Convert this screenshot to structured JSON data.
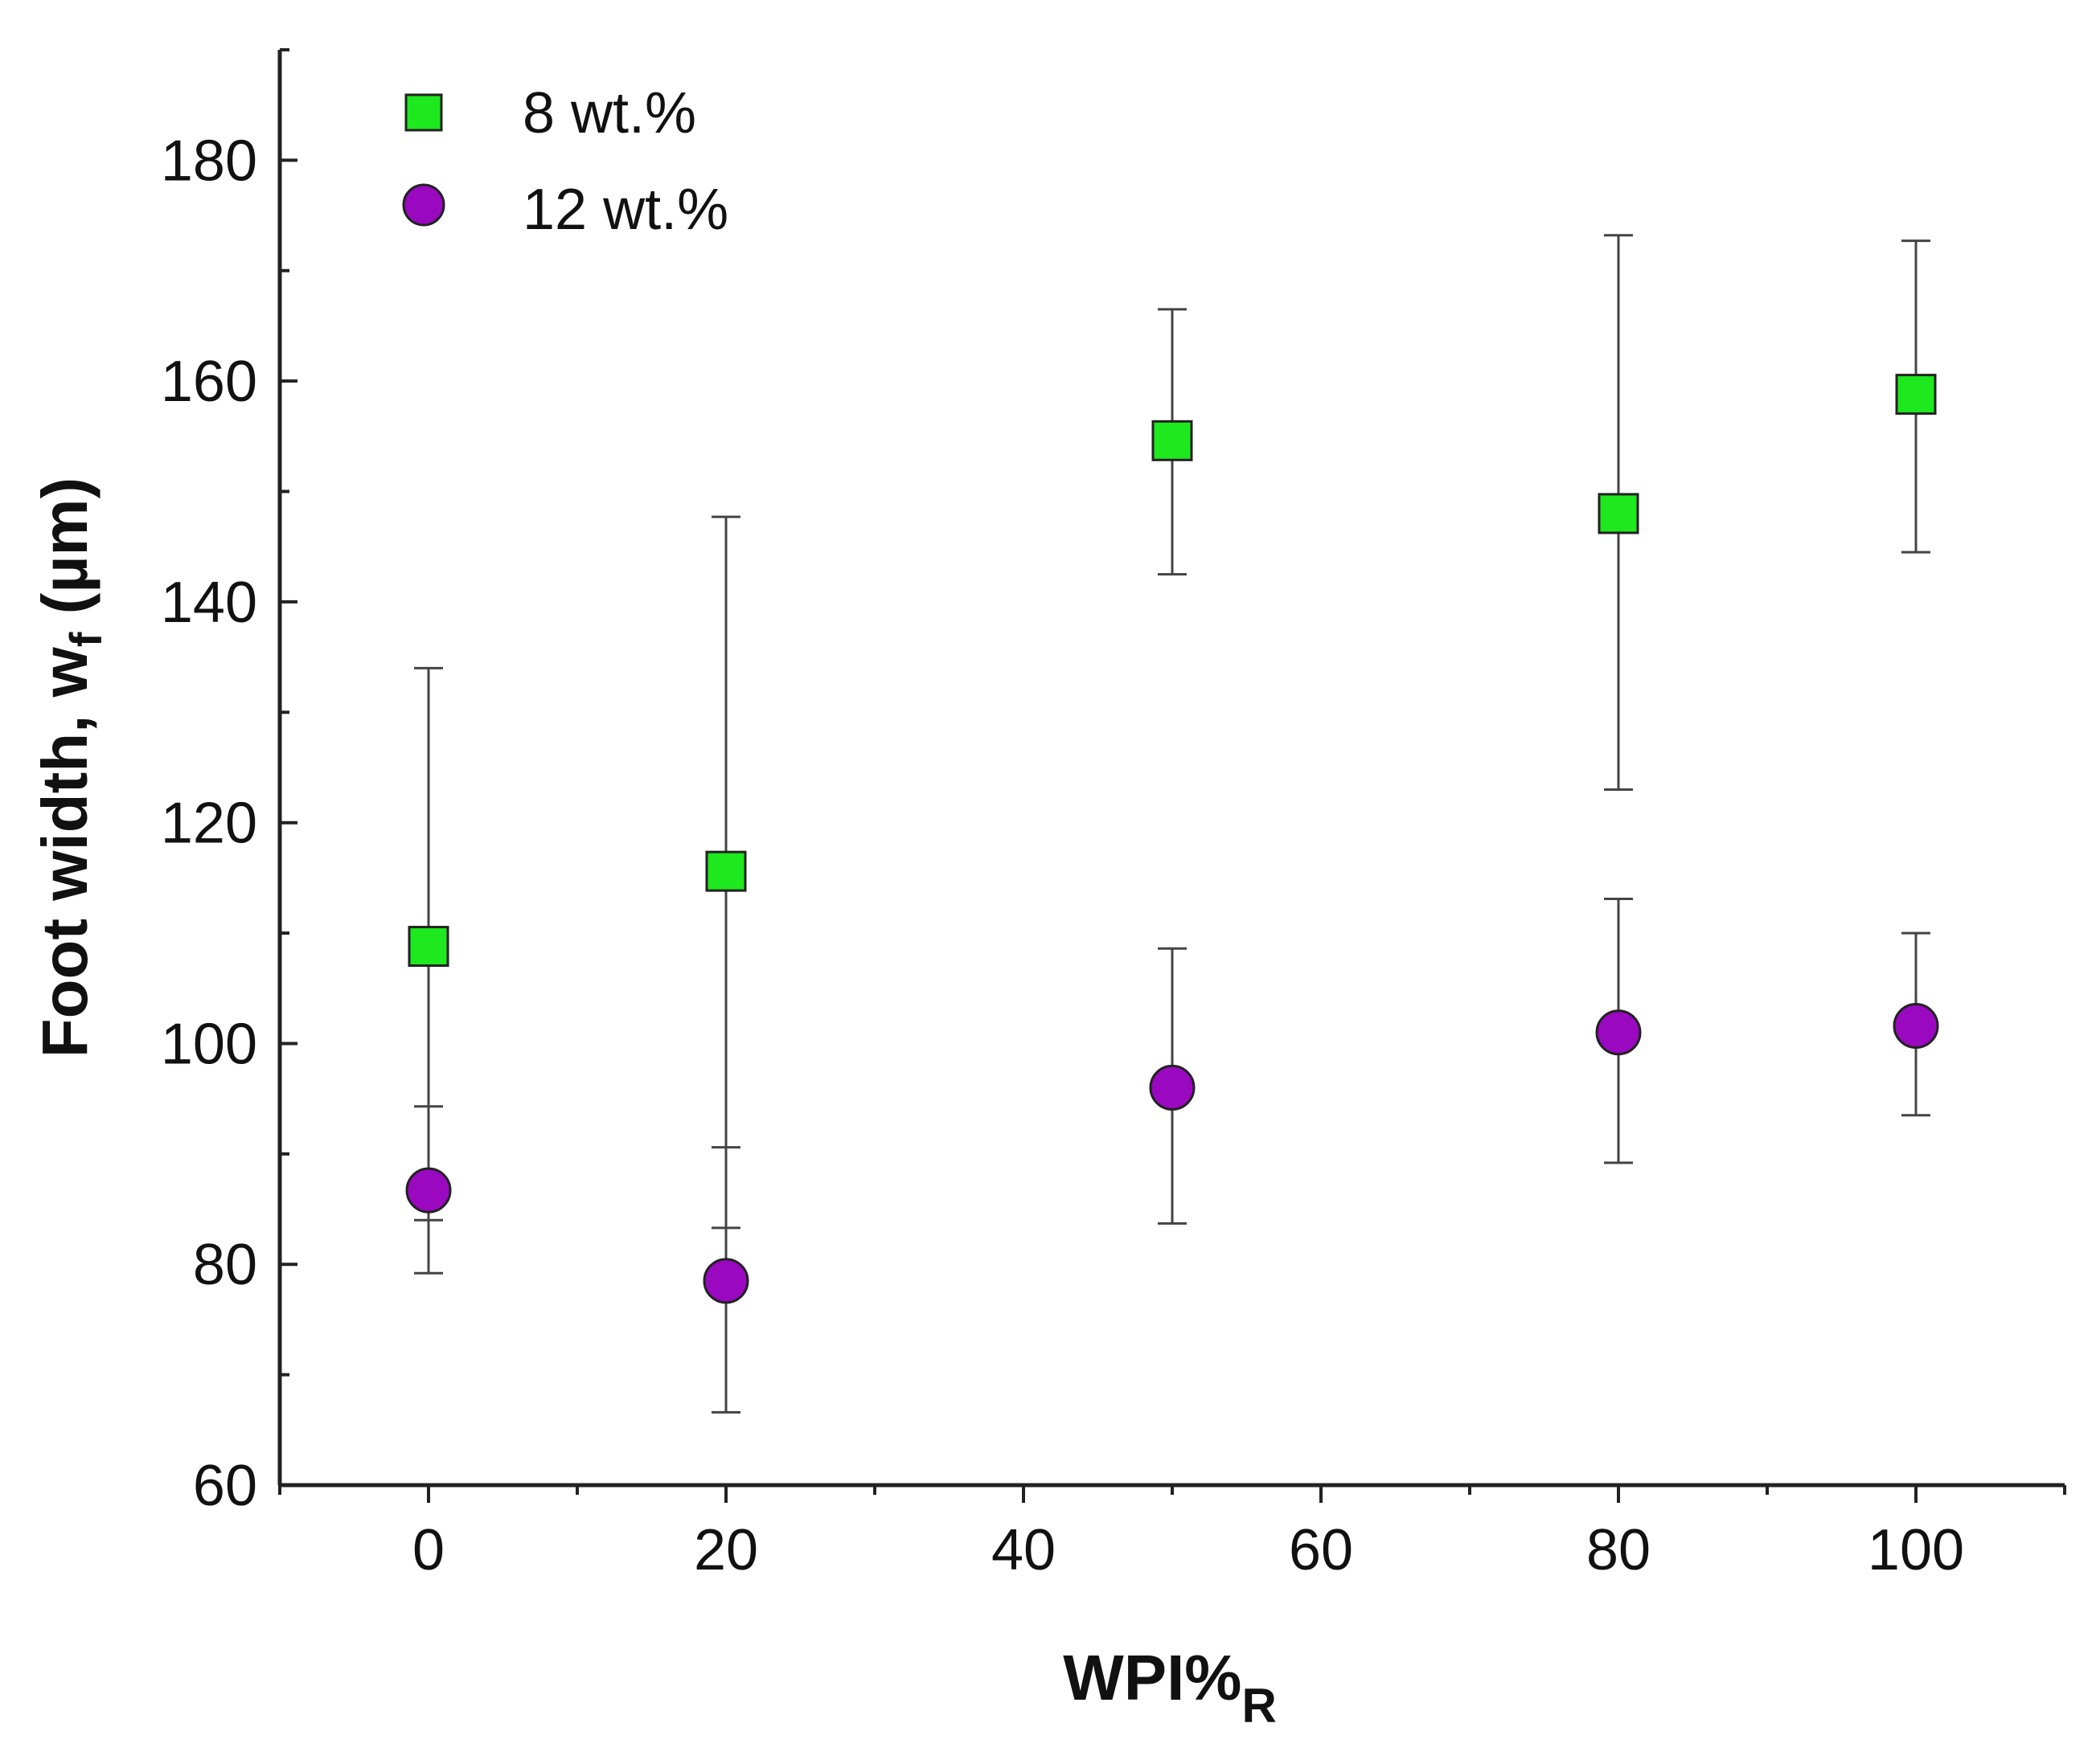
{
  "chart_data": {
    "type": "scatter",
    "title": "",
    "xlabel": {
      "main": "WPI%",
      "sub": "R"
    },
    "ylabel": {
      "main": "Foot width, w",
      "sub": "f",
      "unit": " (µm)"
    },
    "xlim": [
      -10,
      110
    ],
    "ylim": [
      60,
      190
    ],
    "xticks": [
      0,
      20,
      40,
      60,
      80,
      100
    ],
    "yticks": [
      60,
      80,
      100,
      120,
      140,
      160,
      180
    ],
    "grid": false,
    "legend_position": "top-left",
    "series": [
      {
        "name": "8 wt.%",
        "marker": "square",
        "color": "#1ee81e",
        "points": [
          {
            "x": 0,
            "y": 108.8,
            "err_low": 84.0,
            "err_high": 134.0
          },
          {
            "x": 20,
            "y": 115.6,
            "err_low": 83.3,
            "err_high": 147.7
          },
          {
            "x": 50,
            "y": 154.6,
            "err_low": 142.5,
            "err_high": 166.5
          },
          {
            "x": 80,
            "y": 148.0,
            "err_low": 123.0,
            "err_high": 173.2
          },
          {
            "x": 100,
            "y": 158.8,
            "err_low": 144.5,
            "err_high": 172.7
          }
        ]
      },
      {
        "name": "12 wt.%",
        "marker": "circle",
        "color": "#9a08c0",
        "points": [
          {
            "x": 0,
            "y": 86.7,
            "err_low": 79.2,
            "err_high": 94.3
          },
          {
            "x": 20,
            "y": 78.5,
            "err_low": 66.6,
            "err_high": 90.6
          },
          {
            "x": 50,
            "y": 96.0,
            "err_low": 83.7,
            "err_high": 108.6
          },
          {
            "x": 80,
            "y": 101.0,
            "err_low": 89.2,
            "err_high": 113.1
          },
          {
            "x": 100,
            "y": 101.6,
            "err_low": 93.5,
            "err_high": 110.0
          }
        ]
      }
    ]
  }
}
